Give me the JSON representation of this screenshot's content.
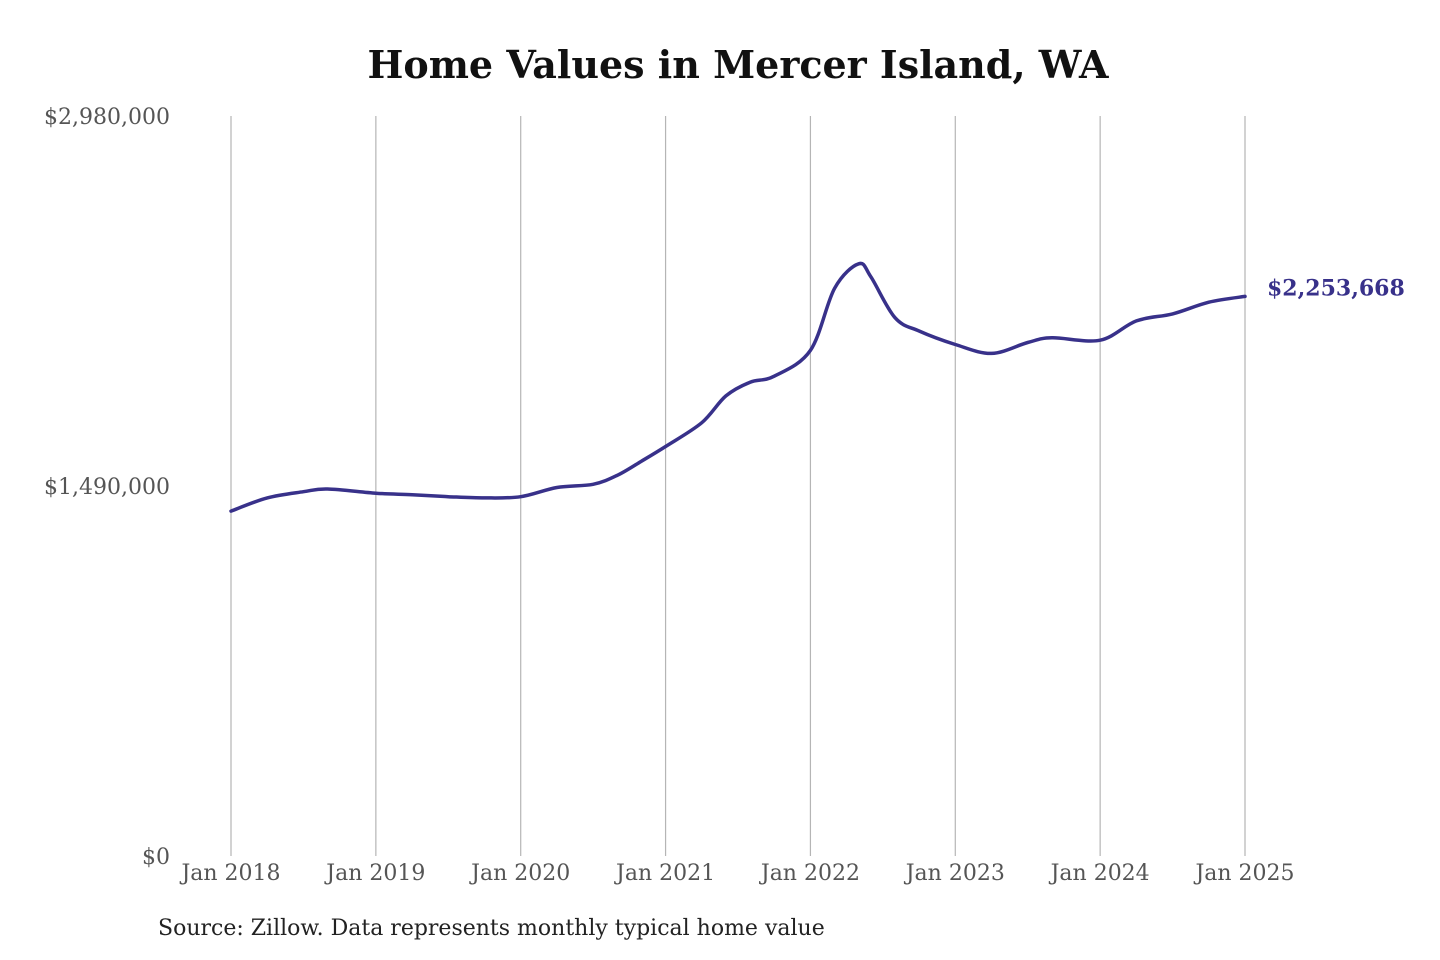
{
  "chart_data": {
    "type": "line",
    "title": "Home Values in Mercer Island, WA",
    "subtitle": "",
    "xlabel": "",
    "ylabel": "",
    "ylim": [
      0,
      2980000
    ],
    "xlim": [
      "Jan 2018",
      "Jan 2025"
    ],
    "y_ticks": [
      "$0",
      "$1,490,000",
      "$2,980,000"
    ],
    "y_tick_values": [
      0,
      1490000,
      2980000
    ],
    "x_ticks": [
      "Jan 2018",
      "Jan 2019",
      "Jan 2020",
      "Jan 2021",
      "Jan 2022",
      "Jan 2023",
      "Jan 2024",
      "Jan 2025"
    ],
    "grid": "vertical",
    "legend": "none",
    "line_color": "#38318a",
    "series": [
      {
        "name": "",
        "points": [
          [
            "Jan 2018",
            1389000
          ],
          [
            "Apr 2018",
            1442000
          ],
          [
            "Jul 2018",
            1467000
          ],
          [
            "Sep 2018",
            1478000
          ],
          [
            "Jan 2019",
            1461000
          ],
          [
            "Apr 2019",
            1455000
          ],
          [
            "Jul 2019",
            1447000
          ],
          [
            "Oct 2019",
            1442000
          ],
          [
            "Jan 2020",
            1447000
          ],
          [
            "Apr 2020",
            1484000
          ],
          [
            "Jul 2020",
            1497000
          ],
          [
            "Sep 2020",
            1533000
          ],
          [
            "Nov 2020",
            1590000
          ],
          [
            "Jan 2021",
            1649000
          ],
          [
            "Apr 2021",
            1745000
          ],
          [
            "Jun 2021",
            1853000
          ],
          [
            "Aug 2021",
            1908000
          ],
          [
            "Oct 2021",
            1932000
          ],
          [
            "Jan 2022",
            2036000
          ],
          [
            "Mar 2022",
            2286000
          ],
          [
            "May 2022",
            2385000
          ],
          [
            "Jun 2022",
            2333000
          ],
          [
            "Aug 2022",
            2168000
          ],
          [
            "Oct 2022",
            2114000
          ],
          [
            "Jan 2023",
            2060000
          ],
          [
            "Apr 2023",
            2024000
          ],
          [
            "Jul 2023",
            2068000
          ],
          [
            "Sep 2023",
            2087000
          ],
          [
            "Jan 2024",
            2077000
          ],
          [
            "Apr 2024",
            2155000
          ],
          [
            "Jul 2024",
            2183000
          ],
          [
            "Oct 2024",
            2230000
          ],
          [
            "Jan 2025",
            2253668
          ]
        ]
      }
    ],
    "end_label": "$2,253,668",
    "source": "Source: Zillow. Data represents monthly typical home value"
  }
}
